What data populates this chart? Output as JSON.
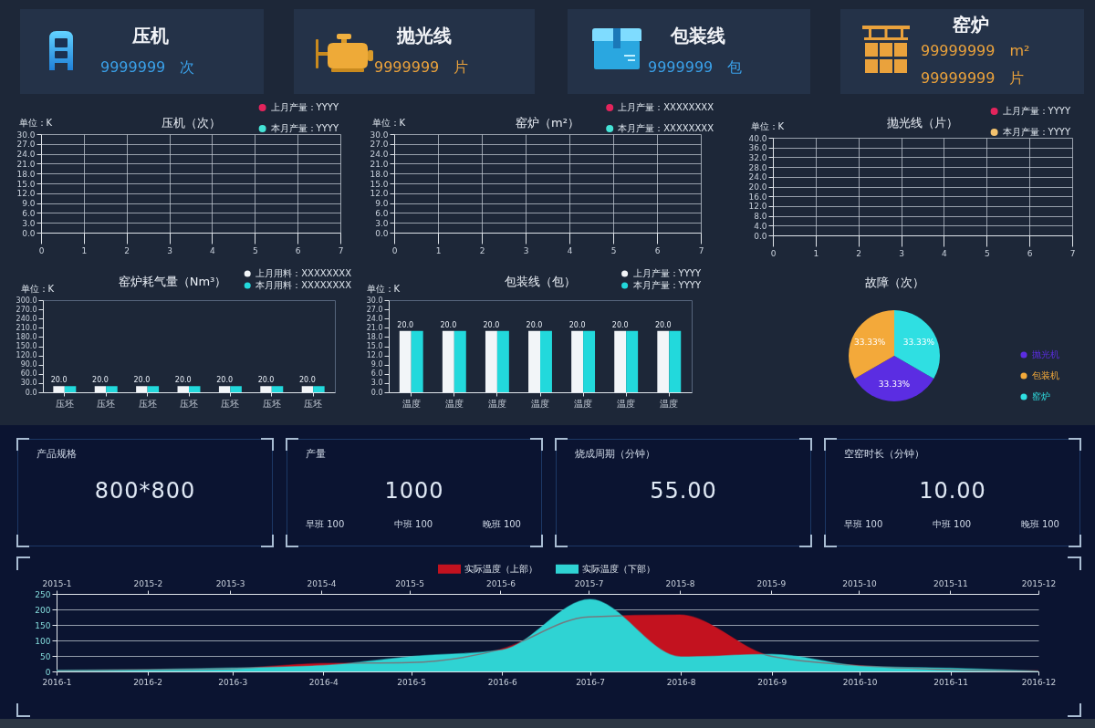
{
  "chart_data": [
    {
      "type": "other",
      "title": "压机",
      "annotations": [
        "9999999",
        "次"
      ]
    },
    {
      "type": "other",
      "title": "抛光线",
      "annotations": [
        "9999999",
        "片"
      ]
    },
    {
      "type": "other",
      "title": "包装线",
      "annotations": [
        "9999999",
        "包"
      ]
    },
    {
      "type": "other",
      "title": "窑炉",
      "annotations": [
        "99999999",
        "m²",
        "99999999",
        "片"
      ]
    },
    {
      "type": "line",
      "title": "压机（次）",
      "ylabel": "单位：K",
      "categories": [
        "0",
        "1",
        "2",
        "3",
        "4",
        "5",
        "6",
        "7"
      ],
      "ylim": [
        0,
        30
      ],
      "yticks": [
        {
          "value": 0,
          "label": "0.0"
        },
        {
          "value": 3,
          "label": "3.0"
        },
        {
          "value": 6,
          "label": "6.0"
        },
        {
          "value": 9,
          "label": "9.0"
        },
        {
          "value": 12,
          "label": "12.0"
        },
        {
          "value": 15,
          "label": "15.0"
        },
        {
          "value": 18,
          "label": "18.0"
        },
        {
          "value": 21,
          "label": "21.0"
        },
        {
          "value": 24,
          "label": "24.0"
        },
        {
          "value": 27,
          "label": "27.0"
        },
        {
          "value": 30,
          "label": "30.0"
        }
      ],
      "grid": true,
      "legend": "top right",
      "series": [
        {
          "name": "上月产量：YYYY",
          "color": "#e3245c",
          "values": [
            null,
            null,
            null,
            null,
            null,
            null,
            null,
            null
          ]
        },
        {
          "name": "本月产量：YYYY",
          "color": "#44e3d6",
          "values": [
            null,
            null,
            null,
            null,
            null,
            null,
            null,
            null
          ]
        }
      ]
    },
    {
      "type": "line",
      "title": "窑炉（m²）",
      "ylabel": "单位：K",
      "categories": [
        "0",
        "1",
        "2",
        "3",
        "4",
        "5",
        "6",
        "7"
      ],
      "ylim": [
        0,
        30
      ],
      "yticks": [
        {
          "value": 0,
          "label": "0.0"
        },
        {
          "value": 3,
          "label": "3.0"
        },
        {
          "value": 6,
          "label": "6.0"
        },
        {
          "value": 9,
          "label": "9.0"
        },
        {
          "value": 12,
          "label": "12.0"
        },
        {
          "value": 15,
          "label": "15.0"
        },
        {
          "value": 18,
          "label": "18.0"
        },
        {
          "value": 21,
          "label": "21.0"
        },
        {
          "value": 24,
          "label": "24.0"
        },
        {
          "value": 27,
          "label": "27.0"
        },
        {
          "value": 30,
          "label": "30.0"
        }
      ],
      "grid": true,
      "legend": "top right",
      "series": [
        {
          "name": "上月产量：XXXXXXXX",
          "color": "#e3245c",
          "values": [
            null,
            null,
            null,
            null,
            null,
            null,
            null,
            null
          ]
        },
        {
          "name": "本月产量：XXXXXXXX",
          "color": "#44e3d6",
          "values": [
            null,
            null,
            null,
            null,
            null,
            null,
            null,
            null
          ]
        }
      ]
    },
    {
      "type": "line",
      "title": "抛光线（片）",
      "ylabel": "单位：K",
      "categories": [
        "0",
        "1",
        "2",
        "3",
        "4",
        "5",
        "6",
        "7"
      ],
      "ylim": [
        0,
        40
      ],
      "yticks": [
        {
          "value": 0,
          "label": "0.0"
        },
        {
          "value": 4,
          "label": "4.0"
        },
        {
          "value": 8,
          "label": "8.0"
        },
        {
          "value": 12,
          "label": "12.0"
        },
        {
          "value": 16,
          "label": "16.0"
        },
        {
          "value": 20,
          "label": "20.0"
        },
        {
          "value": 24,
          "label": "24.0"
        },
        {
          "value": 28,
          "label": "28.0"
        },
        {
          "value": 32,
          "label": "32.0"
        },
        {
          "value": 36,
          "label": "36.0"
        },
        {
          "value": 40,
          "label": "40.0"
        }
      ],
      "grid": true,
      "legend": "top right",
      "series": [
        {
          "name": "上月产量：YYYY",
          "color": "#e3245c",
          "values": [
            null,
            null,
            null,
            null,
            null,
            null,
            null,
            null
          ]
        },
        {
          "name": "本月产量：YYYY",
          "color": "#f3c26e",
          "values": [
            null,
            null,
            null,
            null,
            null,
            null,
            null,
            null
          ]
        }
      ]
    },
    {
      "type": "bar",
      "title": "窑炉耗气量（Nm³）",
      "ylabel": "单位：K",
      "categories": [
        "压坯",
        "压坯",
        "压坯",
        "压坯",
        "压坯",
        "压坯",
        "压坯"
      ],
      "ylim": [
        0,
        300
      ],
      "yticks": [
        {
          "value": 0,
          "label": "0.0"
        },
        {
          "value": 30,
          "label": "30.0"
        },
        {
          "value": 60,
          "label": "60.0"
        },
        {
          "value": 90,
          "label": "90.0"
        },
        {
          "value": 120,
          "label": "120.0"
        },
        {
          "value": 150,
          "label": "150.0"
        },
        {
          "value": 180,
          "label": "180.0"
        },
        {
          "value": 210,
          "label": "210.0"
        },
        {
          "value": 240,
          "label": "240.0"
        },
        {
          "value": 270,
          "label": "270.0"
        },
        {
          "value": 300,
          "label": "300.0"
        }
      ],
      "legend": "top right",
      "series": [
        {
          "name": "上月用料：XXXXXXXX",
          "color": "#f2f5f8",
          "values": [
            20,
            20,
            20,
            20,
            20,
            20,
            20
          ],
          "value_labels": [
            "20.0",
            "20.0",
            "20.0",
            "20.0",
            "20.0",
            "20.0",
            "20.0"
          ]
        },
        {
          "name": "本月用料：XXXXXXXX",
          "color": "#22d9dc",
          "values": [
            20,
            20,
            20,
            20,
            20,
            20,
            20
          ]
        }
      ]
    },
    {
      "type": "bar",
      "title": "包装线（包）",
      "ylabel": "单位：K",
      "categories": [
        "温度",
        "温度",
        "温度",
        "温度",
        "温度",
        "温度",
        "温度"
      ],
      "ylim": [
        0,
        30
      ],
      "yticks": [
        {
          "value": 0,
          "label": "0.0"
        },
        {
          "value": 3,
          "label": "3.0"
        },
        {
          "value": 6,
          "label": "6.0"
        },
        {
          "value": 9,
          "label": "9.0"
        },
        {
          "value": 12,
          "label": "12.0"
        },
        {
          "value": 15,
          "label": "15.0"
        },
        {
          "value": 18,
          "label": "18.0"
        },
        {
          "value": 21,
          "label": "21.0"
        },
        {
          "value": 24,
          "label": "24.0"
        },
        {
          "value": 27,
          "label": "27.0"
        },
        {
          "value": 30,
          "label": "30.0"
        }
      ],
      "legend": "top right",
      "series": [
        {
          "name": "上月产量：YYYY",
          "color": "#f2f5f8",
          "values": [
            20,
            20,
            20,
            20,
            20,
            20,
            20
          ],
          "value_labels": [
            "20.0",
            "20.0",
            "20.0",
            "20.0",
            "20.0",
            "20.0",
            "20.0"
          ]
        },
        {
          "name": "本月产量：YYYY",
          "color": "#22d9dc",
          "values": [
            20,
            20,
            20,
            20,
            20,
            20,
            20
          ]
        }
      ]
    },
    {
      "type": "pie",
      "title": "故障（次）",
      "categories": [
        "抛光机",
        "包装机",
        "窑炉"
      ],
      "values": [
        33.33,
        33.33,
        33.33
      ],
      "colors": [
        "#5b2de2",
        "#f3a93a",
        "#2fdfe2"
      ],
      "value_labels": [
        "33.33%",
        "33.33%",
        "33.33%"
      ],
      "legend": "right"
    },
    {
      "type": "other",
      "title": "产品规格",
      "annotations": [
        "800*800"
      ]
    },
    {
      "type": "other",
      "title": "产量",
      "annotations": [
        "1000",
        "早班 100",
        "中班 100",
        "晚班 100"
      ]
    },
    {
      "type": "other",
      "title": "烧成周期（分钟）",
      "annotations": [
        "55.00"
      ]
    },
    {
      "type": "other",
      "title": "空窑时长（分钟）",
      "annotations": [
        "10.00",
        "早班 100",
        "中班 100",
        "晚班 100"
      ]
    },
    {
      "type": "area",
      "legend": "top",
      "grid": "y",
      "ylim": [
        0,
        250
      ],
      "yticks": [
        0,
        50,
        100,
        150,
        200,
        250
      ],
      "xlim": [
        "2016-01",
        "2016-12"
      ],
      "xticks": [
        {
          "value": "2016-01",
          "label": "2016-1"
        },
        {
          "value": "2016-02",
          "label": "2016-2"
        },
        {
          "value": "2016-03",
          "label": "2016-3"
        },
        {
          "value": "2016-04",
          "label": "2016-4"
        },
        {
          "value": "2016-05",
          "label": "2016-5"
        },
        {
          "value": "2016-06",
          "label": "2016-6"
        },
        {
          "value": "2016-07",
          "label": "2016-7"
        },
        {
          "value": "2016-08",
          "label": "2016-8"
        },
        {
          "value": "2016-09",
          "label": "2016-9"
        },
        {
          "value": "2016-10",
          "label": "2016-10"
        },
        {
          "value": "2016-11",
          "label": "2016-11"
        },
        {
          "value": "2016-12",
          "label": "2016-12"
        }
      ],
      "x2lim": [
        "2015-01",
        "2015-12"
      ],
      "x2ticks": [
        {
          "value": "2015-01",
          "label": "2015-1"
        },
        {
          "value": "2015-02",
          "label": "2015-2"
        },
        {
          "value": "2015-03",
          "label": "2015-3"
        },
        {
          "value": "2015-04",
          "label": "2015-4"
        },
        {
          "value": "2015-05",
          "label": "2015-5"
        },
        {
          "value": "2015-06",
          "label": "2015-6"
        },
        {
          "value": "2015-07",
          "label": "2015-7"
        },
        {
          "value": "2015-08",
          "label": "2015-8"
        },
        {
          "value": "2015-09",
          "label": "2015-9"
        },
        {
          "value": "2015-10",
          "label": "2015-10"
        },
        {
          "value": "2015-11",
          "label": "2015-11"
        },
        {
          "value": "2015-12",
          "label": "2015-12"
        }
      ],
      "series": [
        {
          "name": "实际温度（上部）",
          "color": "#c3121f",
          "axis": "x2",
          "x": [
            "2015-01",
            "2015-02",
            "2015-03",
            "2015-04",
            "2015-05",
            "2015-06",
            "2015-07",
            "2015-08",
            "2015-09",
            "2015-10",
            "2015-11",
            "2015-12"
          ],
          "values": [
            3,
            6,
            9,
            26,
            29,
            71,
            176,
            182,
            49,
            19,
            6,
            2
          ]
        },
        {
          "name": "实际温度（下部）",
          "color": "#2fd3d3",
          "x": [
            "2016-01",
            "2016-02",
            "2016-03",
            "2016-04",
            "2016-05",
            "2016-06",
            "2016-07",
            "2016-08",
            "2016-09",
            "2016-10",
            "2016-11",
            "2016-12"
          ],
          "values": [
            4,
            6,
            11,
            19,
            48,
            69,
            232,
            47,
            55,
            18,
            10,
            1
          ]
        }
      ]
    }
  ]
}
